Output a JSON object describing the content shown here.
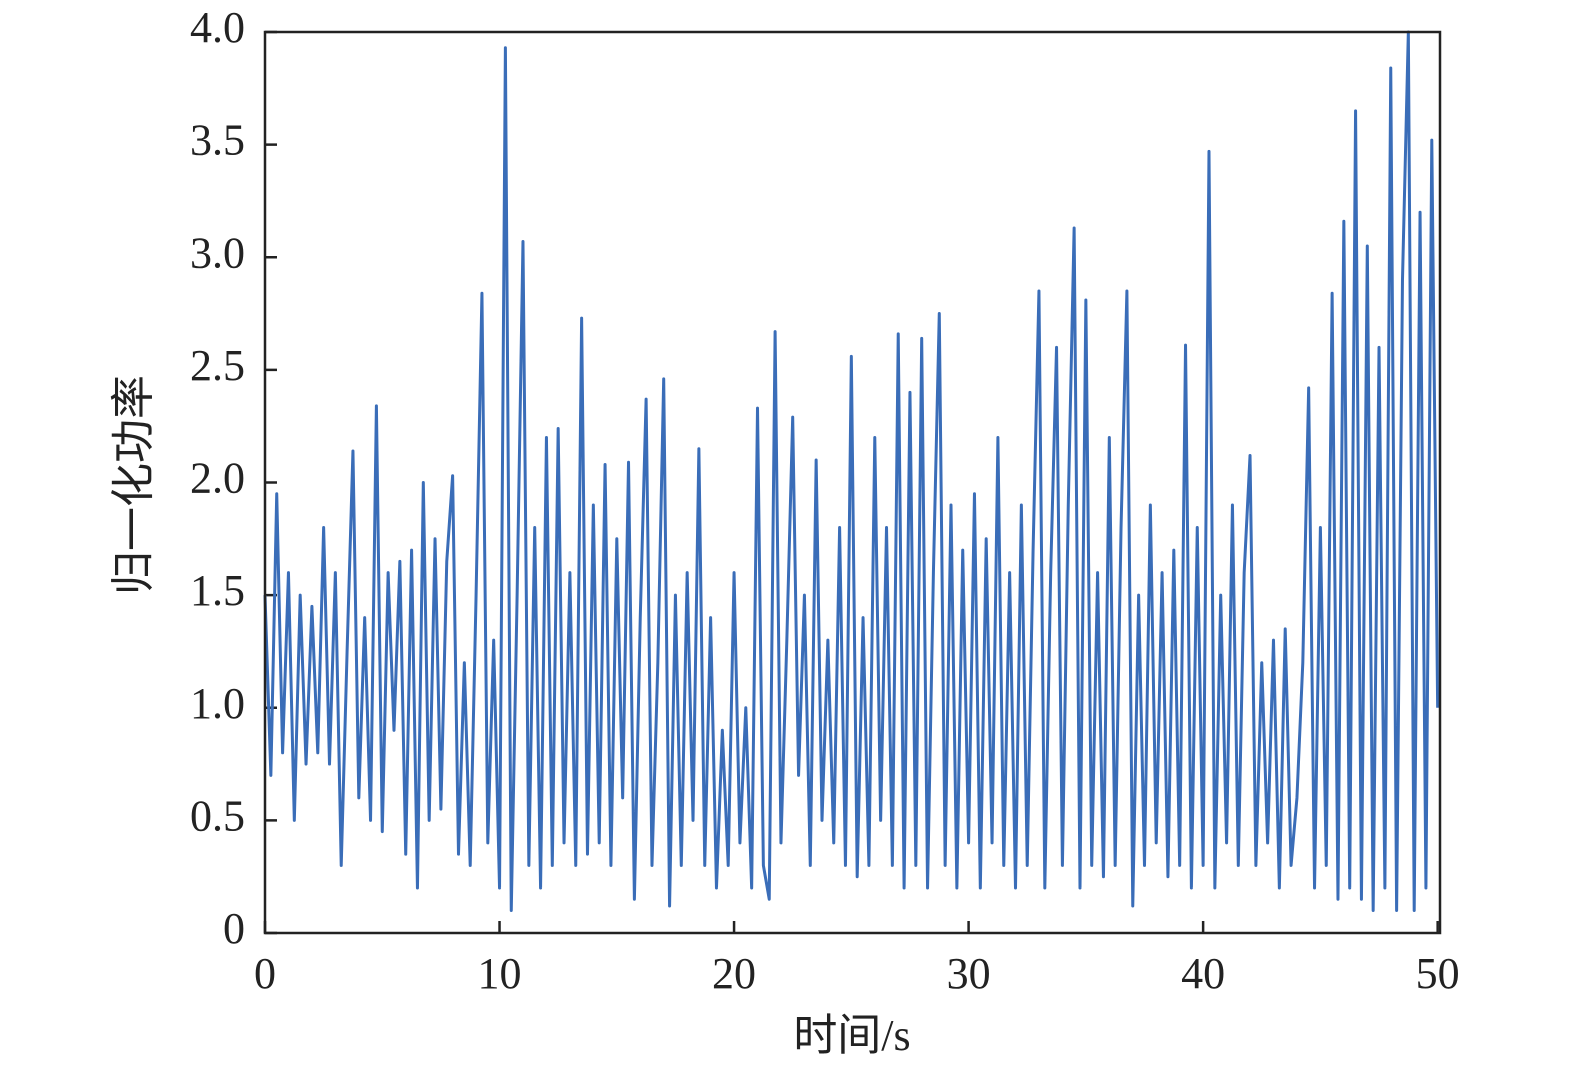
{
  "chart_data": {
    "type": "line",
    "xlabel": "时间/s",
    "ylabel": "归一化功率",
    "xlim": [
      0,
      50.1
    ],
    "ylim": [
      0,
      4.0
    ],
    "xticks": [
      0,
      10,
      20,
      30,
      40,
      50
    ],
    "yticks": [
      0,
      0.5,
      {
        "value": 1.0,
        "label": "1.0"
      },
      1.5,
      {
        "value": 2.0,
        "label": "2.0"
      },
      2.5,
      {
        "value": 3.0,
        "label": "3.0"
      },
      3.5,
      {
        "value": 4.0,
        "label": "4.0"
      }
    ],
    "series": [
      {
        "color": "#3a6db8",
        "x": [
          0,
          0.25,
          0.5,
          0.75,
          1,
          1.25,
          1.5,
          1.75,
          2,
          2.25,
          2.5,
          2.75,
          3,
          3.25,
          3.5,
          3.75,
          4,
          4.25,
          4.5,
          4.75,
          5,
          5.25,
          5.5,
          5.75,
          6,
          6.25,
          6.5,
          6.75,
          7,
          7.25,
          7.5,
          7.75,
          8,
          8.25,
          8.5,
          8.75,
          9,
          9.25,
          9.5,
          9.75,
          10,
          10.25,
          10.5,
          10.75,
          11,
          11.25,
          11.5,
          11.75,
          12,
          12.25,
          12.5,
          12.75,
          13,
          13.25,
          13.5,
          13.75,
          14,
          14.25,
          14.5,
          14.75,
          15,
          15.25,
          15.5,
          15.75,
          16,
          16.25,
          16.5,
          16.75,
          17,
          17.25,
          17.5,
          17.75,
          18,
          18.25,
          18.5,
          18.75,
          19,
          19.25,
          19.5,
          19.75,
          20,
          20.25,
          20.5,
          20.75,
          21,
          21.25,
          21.5,
          21.75,
          22,
          22.25,
          22.5,
          22.75,
          23,
          23.25,
          23.5,
          23.75,
          24,
          24.25,
          24.5,
          24.75,
          25,
          25.25,
          25.5,
          25.75,
          26,
          26.25,
          26.5,
          26.75,
          27,
          27.25,
          27.5,
          27.75,
          28,
          28.25,
          28.5,
          28.75,
          29,
          29.25,
          29.5,
          29.75,
          30,
          30.25,
          30.5,
          30.75,
          31,
          31.25,
          31.5,
          31.75,
          32,
          32.25,
          32.5,
          32.75,
          33,
          33.25,
          33.5,
          33.75,
          34,
          34.25,
          34.5,
          34.75,
          35,
          35.25,
          35.5,
          35.75,
          36,
          36.25,
          36.5,
          36.75,
          37,
          37.25,
          37.5,
          37.75,
          38,
          38.25,
          38.5,
          38.75,
          39,
          39.25,
          39.5,
          39.75,
          40,
          40.25,
          40.5,
          40.75,
          41,
          41.25,
          41.5,
          41.75,
          42,
          42.25,
          42.5,
          42.75,
          43,
          43.25,
          43.5,
          43.75,
          44,
          44.25,
          44.5,
          44.75,
          45,
          45.25,
          45.5,
          45.75,
          46,
          46.25,
          46.5,
          46.75,
          47,
          47.25,
          47.5,
          47.75,
          48,
          48.25,
          48.5,
          48.75,
          49,
          49.25,
          49.5,
          49.75,
          50
        ],
        "values": [
          1.5,
          0.7,
          1.95,
          0.8,
          1.6,
          0.5,
          1.5,
          0.75,
          1.45,
          0.8,
          1.8,
          0.75,
          1.6,
          0.3,
          1.25,
          2.14,
          0.6,
          1.4,
          0.5,
          2.34,
          0.45,
          1.6,
          0.9,
          1.65,
          0.35,
          1.7,
          0.2,
          2.0,
          0.5,
          1.75,
          0.55,
          1.65,
          2.03,
          0.35,
          1.2,
          0.3,
          1.5,
          2.84,
          0.4,
          1.3,
          0.2,
          3.93,
          0.1,
          1.5,
          3.07,
          0.3,
          1.8,
          0.2,
          2.2,
          0.3,
          2.24,
          0.4,
          1.6,
          0.3,
          2.73,
          0.35,
          1.9,
          0.4,
          2.08,
          0.3,
          1.75,
          0.6,
          2.09,
          0.15,
          1.4,
          2.37,
          0.3,
          1.2,
          2.46,
          0.12,
          1.5,
          0.3,
          1.6,
          0.5,
          2.15,
          0.3,
          1.4,
          0.2,
          0.9,
          0.3,
          1.6,
          0.4,
          1.0,
          0.2,
          2.33,
          0.3,
          0.15,
          2.67,
          0.4,
          1.3,
          2.29,
          0.7,
          1.5,
          0.3,
          2.1,
          0.5,
          1.3,
          0.4,
          1.8,
          0.3,
          2.56,
          0.25,
          1.4,
          0.3,
          2.2,
          0.5,
          1.8,
          0.3,
          2.66,
          0.2,
          2.4,
          0.3,
          2.64,
          0.2,
          1.6,
          2.75,
          0.3,
          1.9,
          0.2,
          1.7,
          0.4,
          1.95,
          0.2,
          1.75,
          0.4,
          2.2,
          0.3,
          1.6,
          0.2,
          1.9,
          0.3,
          1.7,
          2.85,
          0.2,
          1.6,
          2.6,
          0.3,
          1.9,
          3.13,
          0.2,
          2.81,
          0.3,
          1.6,
          0.25,
          2.2,
          0.3,
          1.8,
          2.85,
          0.12,
          1.5,
          0.3,
          1.9,
          0.4,
          1.6,
          0.25,
          1.7,
          0.3,
          2.61,
          0.2,
          1.8,
          0.3,
          3.47,
          0.2,
          1.5,
          0.4,
          1.9,
          0.3,
          1.6,
          2.12,
          0.3,
          1.2,
          0.4,
          1.3,
          0.2,
          1.35,
          0.3,
          0.6,
          1.2,
          2.42,
          0.2,
          1.8,
          0.3,
          2.84,
          0.15,
          3.16,
          0.2,
          3.65,
          0.15,
          3.05,
          0.1,
          2.6,
          0.2,
          3.84,
          0.1,
          2.9,
          4.0,
          0.1,
          3.2,
          0.2,
          3.52,
          1.0
        ]
      }
    ]
  }
}
